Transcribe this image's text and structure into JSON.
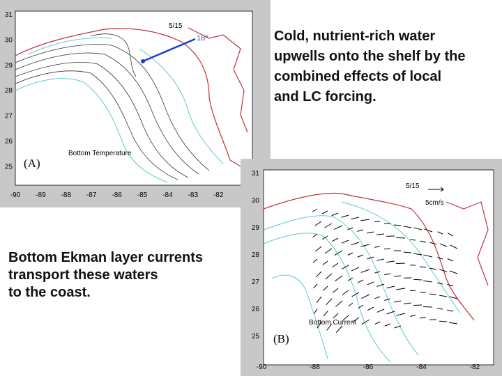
{
  "slide": {
    "text_top": [
      "Cold, nutrient-rich water",
      "upwells onto the shelf by the",
      "combined effects of local",
      "and LC forcing."
    ],
    "text_bottom": [
      "Bottom Ekman layer currents",
      "transport these waters",
      "to the coast."
    ],
    "map_a": {
      "date": "5/15",
      "isotherm": "18º",
      "caption": "Bottom Temperature",
      "panel": "(A)",
      "yticks": [
        "31",
        "30",
        "29",
        "28",
        "27",
        "26",
        "25"
      ],
      "xticks": [
        "-90",
        "-89",
        "-88",
        "-87",
        "-86",
        "-85",
        "-84",
        "-83",
        "-82"
      ]
    },
    "map_b": {
      "date": "5/15",
      "scale": "5cm/s",
      "caption": "Bottom Current",
      "panel": "(B)",
      "yticks": [
        "31",
        "30",
        "29",
        "28",
        "27",
        "26",
        "25"
      ],
      "xticks": [
        "-90",
        "-88",
        "-86",
        "-84",
        "-82"
      ]
    }
  }
}
